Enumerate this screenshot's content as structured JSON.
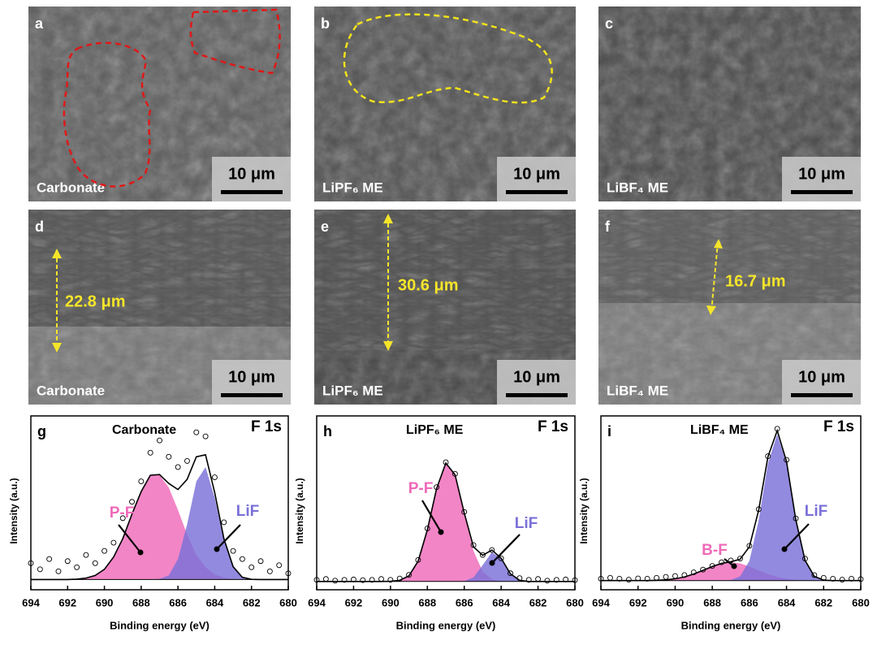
{
  "panels": [
    {
      "letter": "a",
      "sample": "Carbonate",
      "scale_bar": "10 μm"
    },
    {
      "letter": "b",
      "sample": "LiPF₆ ME",
      "scale_bar": "10 μm"
    },
    {
      "letter": "c",
      "sample": "LiBF₄ ME",
      "scale_bar": "10 μm"
    },
    {
      "letter": "d",
      "sample": "Carbonate",
      "scale_bar": "10 μm",
      "thickness": "22.8 μm"
    },
    {
      "letter": "e",
      "sample": "LiPF₆ ME",
      "scale_bar": "10 μm",
      "thickness": "30.6 μm"
    },
    {
      "letter": "f",
      "sample": "LiBF₄ ME",
      "scale_bar": "10 μm",
      "thickness": "16.7 μm"
    }
  ],
  "charts": [
    {
      "type": "line",
      "letter": "g",
      "title": "Carbonate",
      "element": "F 1s",
      "x_label": "Binding energy (eV)",
      "y_label": "Intensity (a.u.)",
      "x": [
        694,
        693.5,
        693,
        692.5,
        692,
        691.5,
        691,
        690.5,
        690,
        689.5,
        689,
        688.5,
        688,
        687.5,
        687,
        686.5,
        686,
        685.5,
        685,
        684.5,
        684,
        683.5,
        683,
        682.5,
        682,
        681.5,
        681,
        680.5,
        680
      ],
      "xlim": [
        694,
        680
      ],
      "xticks": [
        694,
        692,
        690,
        688,
        686,
        684,
        682,
        680
      ],
      "ylim": [
        -5,
        80
      ],
      "series": [
        {
          "name": "P-F",
          "color": "#ef6ab9",
          "style": "area",
          "values": [
            0,
            0,
            0,
            0,
            0,
            0.2,
            0.7,
            2,
            5,
            11,
            20,
            32,
            43,
            51,
            51,
            45,
            34,
            22,
            12,
            6,
            2.5,
            0.9,
            0.3,
            0.1,
            0,
            0,
            0,
            0,
            0
          ]
        },
        {
          "name": "LiF",
          "color": "#7a70d8",
          "style": "area",
          "values": [
            0,
            0,
            0,
            0,
            0,
            0,
            0,
            0,
            0,
            0,
            0,
            0,
            0,
            0,
            0.3,
            2,
            10,
            27,
            48,
            55,
            40,
            19,
            6,
            1,
            0.1,
            0,
            0,
            0,
            0
          ]
        },
        {
          "color": "#000000",
          "style": "line",
          "values": [
            0,
            0,
            0,
            0,
            0,
            0.2,
            0.7,
            2,
            5,
            11,
            20,
            32,
            43,
            51,
            51.3,
            47,
            44,
            49,
            60,
            61,
            42.5,
            19.9,
            6.3,
            1.1,
            0.1,
            0,
            0,
            0,
            0
          ]
        },
        {
          "color": "#000000",
          "style": "points",
          "values": [
            8,
            5,
            10,
            4,
            9,
            6,
            12,
            8,
            14,
            18,
            30,
            38,
            48,
            62,
            68,
            60,
            55,
            58,
            72,
            70,
            50,
            28,
            14,
            10,
            6,
            9,
            4,
            7,
            3
          ]
        }
      ]
    },
    {
      "type": "line",
      "letter": "h",
      "title": "LiPF₆ ME",
      "element": "F 1s",
      "x_label": "Binding energy (eV)",
      "y_label": "Intensity (a.u.)",
      "x": [
        694,
        693.5,
        693,
        692.5,
        692,
        691.5,
        691,
        690.5,
        690,
        689.5,
        689,
        688.5,
        688,
        687.5,
        687,
        686.5,
        686,
        685.5,
        685,
        684.5,
        684,
        683.5,
        683,
        682.5,
        682,
        681.5,
        681,
        680.5,
        680
      ],
      "xlim": [
        694,
        680
      ],
      "xticks": [
        694,
        692,
        690,
        688,
        686,
        684,
        682,
        680
      ],
      "ylim": [
        -5,
        100
      ],
      "series": [
        {
          "name": "P-F",
          "color": "#ef6ab9",
          "style": "area",
          "values": [
            0,
            0,
            0,
            0,
            0,
            0,
            0,
            0,
            0.1,
            0.7,
            3.4,
            12.3,
            31.2,
            56.1,
            71.5,
            64.5,
            41.1,
            18.5,
            5.9,
            1.3,
            0.2,
            0,
            0,
            0,
            0,
            0,
            0,
            0,
            0
          ]
        },
        {
          "name": "LiF",
          "color": "#7a70d8",
          "style": "area",
          "values": [
            0,
            0,
            0,
            0,
            0,
            0,
            0,
            0,
            0,
            0,
            0,
            0,
            0,
            0,
            0,
            0,
            0.3,
            2.4,
            9.9,
            17.7,
            13.8,
            4.7,
            0.7,
            0,
            0,
            0,
            0,
            0,
            0
          ]
        },
        {
          "color": "#000000",
          "style": "line",
          "values": [
            0,
            0,
            0,
            0,
            0,
            0,
            0,
            0,
            0.1,
            0.7,
            3.4,
            12.3,
            31.2,
            56.1,
            71.5,
            64.5,
            41.4,
            20.9,
            15.8,
            19,
            14,
            4.7,
            0.7,
            0,
            0,
            0,
            0,
            0,
            0
          ]
        },
        {
          "color": "#000000",
          "style": "points",
          "values": [
            1,
            1.5,
            0.5,
            1,
            1.2,
            0.8,
            1,
            1.5,
            1,
            1.8,
            4,
            13,
            32,
            57,
            72,
            65,
            42,
            22,
            16,
            19,
            14,
            5,
            2,
            1,
            1.5,
            0.5,
            1,
            1.2,
            0.8
          ]
        }
      ]
    },
    {
      "type": "line",
      "letter": "i",
      "title": "LiBF₄ ME",
      "element": "F 1s",
      "x_label": "Binding energy (eV)",
      "y_label": "Intensity (a.u.)",
      "x": [
        694,
        693.5,
        693,
        692.5,
        692,
        691.5,
        691,
        690.5,
        690,
        689.5,
        689,
        688.5,
        688,
        687.5,
        687,
        686.5,
        686,
        685.5,
        685,
        684.5,
        684,
        683.5,
        683,
        682.5,
        682,
        681.5,
        681,
        680.5,
        680
      ],
      "xlim": [
        694,
        680
      ],
      "xticks": [
        694,
        692,
        690,
        688,
        686,
        684,
        682,
        680
      ],
      "ylim": [
        -5,
        90
      ],
      "series": [
        {
          "name": "B-F",
          "color": "#ef6ab9",
          "style": "area",
          "values": [
            0,
            0,
            0,
            0,
            0,
            0,
            0.2,
            0.4,
            1,
            2,
            3.6,
            5.6,
            7.7,
            9.4,
            10,
            9.4,
            7.7,
            5.6,
            3.6,
            2,
            1,
            0.4,
            0.2,
            0,
            0,
            0,
            0,
            0,
            0
          ]
        },
        {
          "name": "LiF",
          "color": "#7a70d8",
          "style": "area",
          "values": [
            0,
            0,
            0,
            0,
            0,
            0,
            0,
            0,
            0,
            0,
            0,
            0,
            0,
            0,
            0.3,
            2.3,
            10.8,
            32.9,
            64.1,
            80,
            64.1,
            32.9,
            10.8,
            2.3,
            0.3,
            0,
            0,
            0,
            0
          ]
        },
        {
          "color": "#000000",
          "style": "line",
          "values": [
            0,
            0,
            0,
            0,
            0,
            0,
            0.2,
            0.4,
            1,
            2,
            3.6,
            5.6,
            7.7,
            9.4,
            10.3,
            11.7,
            18.5,
            38.5,
            67.7,
            82,
            65.1,
            33.3,
            11,
            2.3,
            0.3,
            0,
            0,
            0,
            0
          ]
        },
        {
          "color": "#000000",
          "style": "points",
          "values": [
            1,
            1.5,
            1,
            0.5,
            1.2,
            1,
            1.5,
            2,
            2.5,
            3,
            4.5,
            6,
            8,
            10,
            11,
            12,
            19,
            39,
            68,
            83,
            66,
            34,
            12,
            3,
            1.5,
            1,
            0.5,
            1,
            0.8
          ]
        }
      ]
    }
  ]
}
